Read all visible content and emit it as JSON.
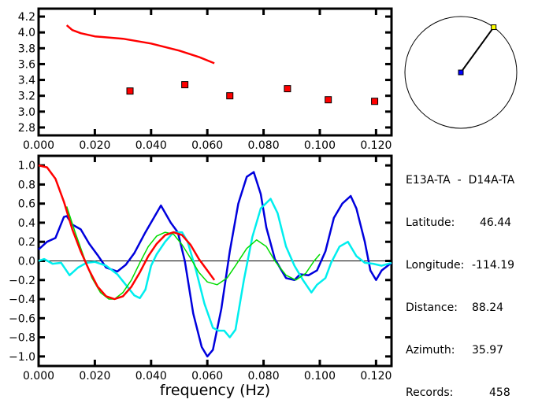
{
  "chart_data": [
    {
      "type": "scatter",
      "xlim": [
        0,
        0.1255
      ],
      "ylim": [
        2.7,
        4.3
      ],
      "xticks": [
        "0.000",
        "0.020",
        "0.040",
        "0.060",
        "0.080",
        "0.100",
        "0.120"
      ],
      "yticks": [
        "2.8",
        "3.0",
        "3.2",
        "3.4",
        "3.6",
        "3.8",
        "4.0",
        "4.2"
      ],
      "series": [
        {
          "kind": "line",
          "color": "#ff0000",
          "x": [
            0.01,
            0.011,
            0.012,
            0.015,
            0.02,
            0.03,
            0.04,
            0.05,
            0.057,
            0.0625
          ],
          "y": [
            4.09,
            4.06,
            4.03,
            3.99,
            3.95,
            3.92,
            3.86,
            3.77,
            3.69,
            3.61
          ]
        },
        {
          "kind": "points",
          "color": "#ff0000",
          "x": [
            0.0325,
            0.052,
            0.068,
            0.0885,
            0.103,
            0.1195
          ],
          "y": [
            3.26,
            3.34,
            3.2,
            3.29,
            3.15,
            3.13
          ]
        }
      ]
    },
    {
      "type": "line",
      "xlabel": "frequency (Hz)",
      "xlim": [
        0,
        0.1255
      ],
      "ylim": [
        -1.1,
        1.1
      ],
      "xticks": [
        "0.000",
        "0.020",
        "0.040",
        "0.060",
        "0.080",
        "0.100",
        "0.120"
      ],
      "yticks": [
        "-1.0",
        "-0.8",
        "-0.6",
        "-0.4",
        "-0.2",
        "0.0",
        "0.2",
        "0.4",
        "0.6",
        "0.8",
        "1.0"
      ],
      "zero_line": true,
      "series": [
        {
          "color": "#0000dd",
          "x": [
            0,
            0.003,
            0.006,
            0.009,
            0.01,
            0.012,
            0.015,
            0.018,
            0.021,
            0.024,
            0.028,
            0.031,
            0.034,
            0.038,
            0.0435,
            0.047,
            0.0495,
            0.052,
            0.055,
            0.058,
            0.06,
            0.062,
            0.065,
            0.068,
            0.071,
            0.074,
            0.0765,
            0.079,
            0.081,
            0.084,
            0.088,
            0.091,
            0.093,
            0.096,
            0.099,
            0.102,
            0.105,
            0.108,
            0.111,
            0.113,
            0.116,
            0.118,
            0.12,
            0.122,
            0.1255
          ],
          "y": [
            0.12,
            0.2,
            0.24,
            0.46,
            0.47,
            0.38,
            0.33,
            0.18,
            0.06,
            -0.07,
            -0.11,
            -0.04,
            0.08,
            0.3,
            0.58,
            0.4,
            0.3,
            0.0,
            -0.55,
            -0.9,
            -1.0,
            -0.93,
            -0.5,
            0.1,
            0.6,
            0.88,
            0.93,
            0.7,
            0.35,
            0.02,
            -0.18,
            -0.2,
            -0.14,
            -0.15,
            -0.1,
            0.1,
            0.45,
            0.6,
            0.68,
            0.55,
            0.2,
            -0.1,
            -0.2,
            -0.1,
            -0.02
          ]
        },
        {
          "color": "#00eeee",
          "x": [
            0,
            0.002,
            0.005,
            0.008,
            0.011,
            0.014,
            0.017,
            0.02,
            0.024,
            0.028,
            0.031,
            0.034,
            0.036,
            0.038,
            0.04,
            0.042,
            0.045,
            0.048,
            0.051,
            0.053,
            0.056,
            0.059,
            0.062,
            0.064,
            0.066,
            0.068,
            0.07,
            0.073,
            0.076,
            0.079,
            0.0825,
            0.085,
            0.088,
            0.091,
            0.094,
            0.097,
            0.099,
            0.102,
            0.104,
            0.107,
            0.11,
            0.113,
            0.116,
            0.119,
            0.122,
            0.1255
          ],
          "y": [
            0.0,
            0.02,
            -0.03,
            -0.02,
            -0.15,
            -0.07,
            -0.02,
            -0.01,
            -0.05,
            -0.14,
            -0.25,
            -0.36,
            -0.39,
            -0.3,
            -0.05,
            0.07,
            0.2,
            0.3,
            0.3,
            0.2,
            -0.1,
            -0.45,
            -0.7,
            -0.73,
            -0.73,
            -0.8,
            -0.72,
            -0.2,
            0.25,
            0.55,
            0.65,
            0.5,
            0.15,
            -0.05,
            -0.2,
            -0.33,
            -0.25,
            -0.18,
            -0.02,
            0.15,
            0.2,
            0.05,
            -0.02,
            -0.03,
            -0.05,
            -0.02
          ]
        },
        {
          "color": "#00dd00",
          "x": [
            0.01,
            0.013,
            0.016,
            0.019,
            0.022,
            0.025,
            0.027,
            0.03,
            0.033,
            0.036,
            0.039,
            0.042,
            0.045,
            0.048,
            0.051,
            0.054,
            0.057,
            0.06,
            0.0635,
            0.067,
            0.07,
            0.074,
            0.0775,
            0.081,
            0.084,
            0.088,
            0.0915,
            0.095,
            0.098,
            0.1
          ],
          "y": [
            0.57,
            0.3,
            0.05,
            -0.18,
            -0.33,
            -0.4,
            -0.4,
            -0.33,
            -0.2,
            -0.02,
            0.15,
            0.26,
            0.3,
            0.28,
            0.17,
            0.03,
            -0.12,
            -0.22,
            -0.25,
            -0.18,
            -0.05,
            0.13,
            0.22,
            0.15,
            0.0,
            -0.15,
            -0.2,
            -0.13,
            0.0,
            0.07
          ]
        },
        {
          "color": "#ff0000",
          "x": [
            0,
            0.003,
            0.006,
            0.009,
            0.012,
            0.015,
            0.018,
            0.021,
            0.024,
            0.027,
            0.03,
            0.033,
            0.036,
            0.039,
            0.042,
            0.045,
            0.048,
            0.051,
            0.054,
            0.057,
            0.06,
            0.0625
          ],
          "y": [
            1.0,
            0.98,
            0.86,
            0.62,
            0.33,
            0.1,
            -0.1,
            -0.27,
            -0.37,
            -0.4,
            -0.37,
            -0.27,
            -0.12,
            0.05,
            0.18,
            0.27,
            0.3,
            0.27,
            0.17,
            0.02,
            -0.1,
            -0.2
          ]
        }
      ]
    }
  ],
  "map": {
    "azimuth_deg": 35.97,
    "origin_color": "#0000ff",
    "target_color": "#ffff00"
  },
  "info": {
    "title": "E13A-TA  -  D14A-TA",
    "rows": [
      {
        "label": "Latitude:",
        "value": "46.44"
      },
      {
        "label": "Longitude:",
        "value": "-114.19"
      },
      {
        "label": "Distance:",
        "value": "88.24"
      },
      {
        "label": "Azimuth:",
        "value": "35.97"
      },
      {
        "label": "Records:",
        "value": "458"
      }
    ]
  }
}
